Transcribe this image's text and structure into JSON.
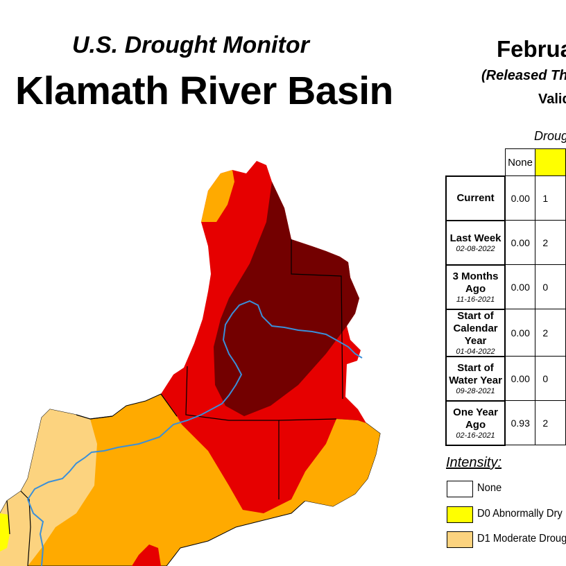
{
  "header": {
    "monitor_title": "U.S. Drought Monitor",
    "basin_title": "Klamath River Basin",
    "date_partial": "Februa",
    "released_partial": "(Released Thu",
    "valid_partial": "Valid"
  },
  "table": {
    "caption_partial": "Droug",
    "col_none": "None",
    "rows": [
      {
        "label": "Current",
        "date": "",
        "none": "0.00",
        "d0_partial": "1"
      },
      {
        "label": "Last Week",
        "date": "02-08-2022",
        "none": "0.00",
        "d0_partial": "2"
      },
      {
        "label": "3 Months Ago",
        "date": "11-16-2021",
        "none": "0.00",
        "d0_partial": "0"
      },
      {
        "label": "Start of Calendar Year",
        "date": "01-04-2022",
        "none": "0.00",
        "d0_partial": "2"
      },
      {
        "label": "Start of Water Year",
        "date": "09-28-2021",
        "none": "0.00",
        "d0_partial": "0"
      },
      {
        "label": "One Year Ago",
        "date": "02-16-2021",
        "none": "0.93",
        "d0_partial": "2"
      }
    ]
  },
  "legend": {
    "title": "Intensity:",
    "items": [
      {
        "label": "None",
        "color": "#ffffff"
      },
      {
        "label": "D0 Abnormally Dry",
        "color": "#ffff00"
      },
      {
        "label": "D1 Moderate Droug",
        "color": "#fcd37f"
      }
    ]
  },
  "colors": {
    "d0": "#ffff00",
    "d1": "#fcd37f",
    "d2": "#ffaa00",
    "d3": "#e60000",
    "d4": "#730000",
    "river": "#3a8fd9"
  }
}
